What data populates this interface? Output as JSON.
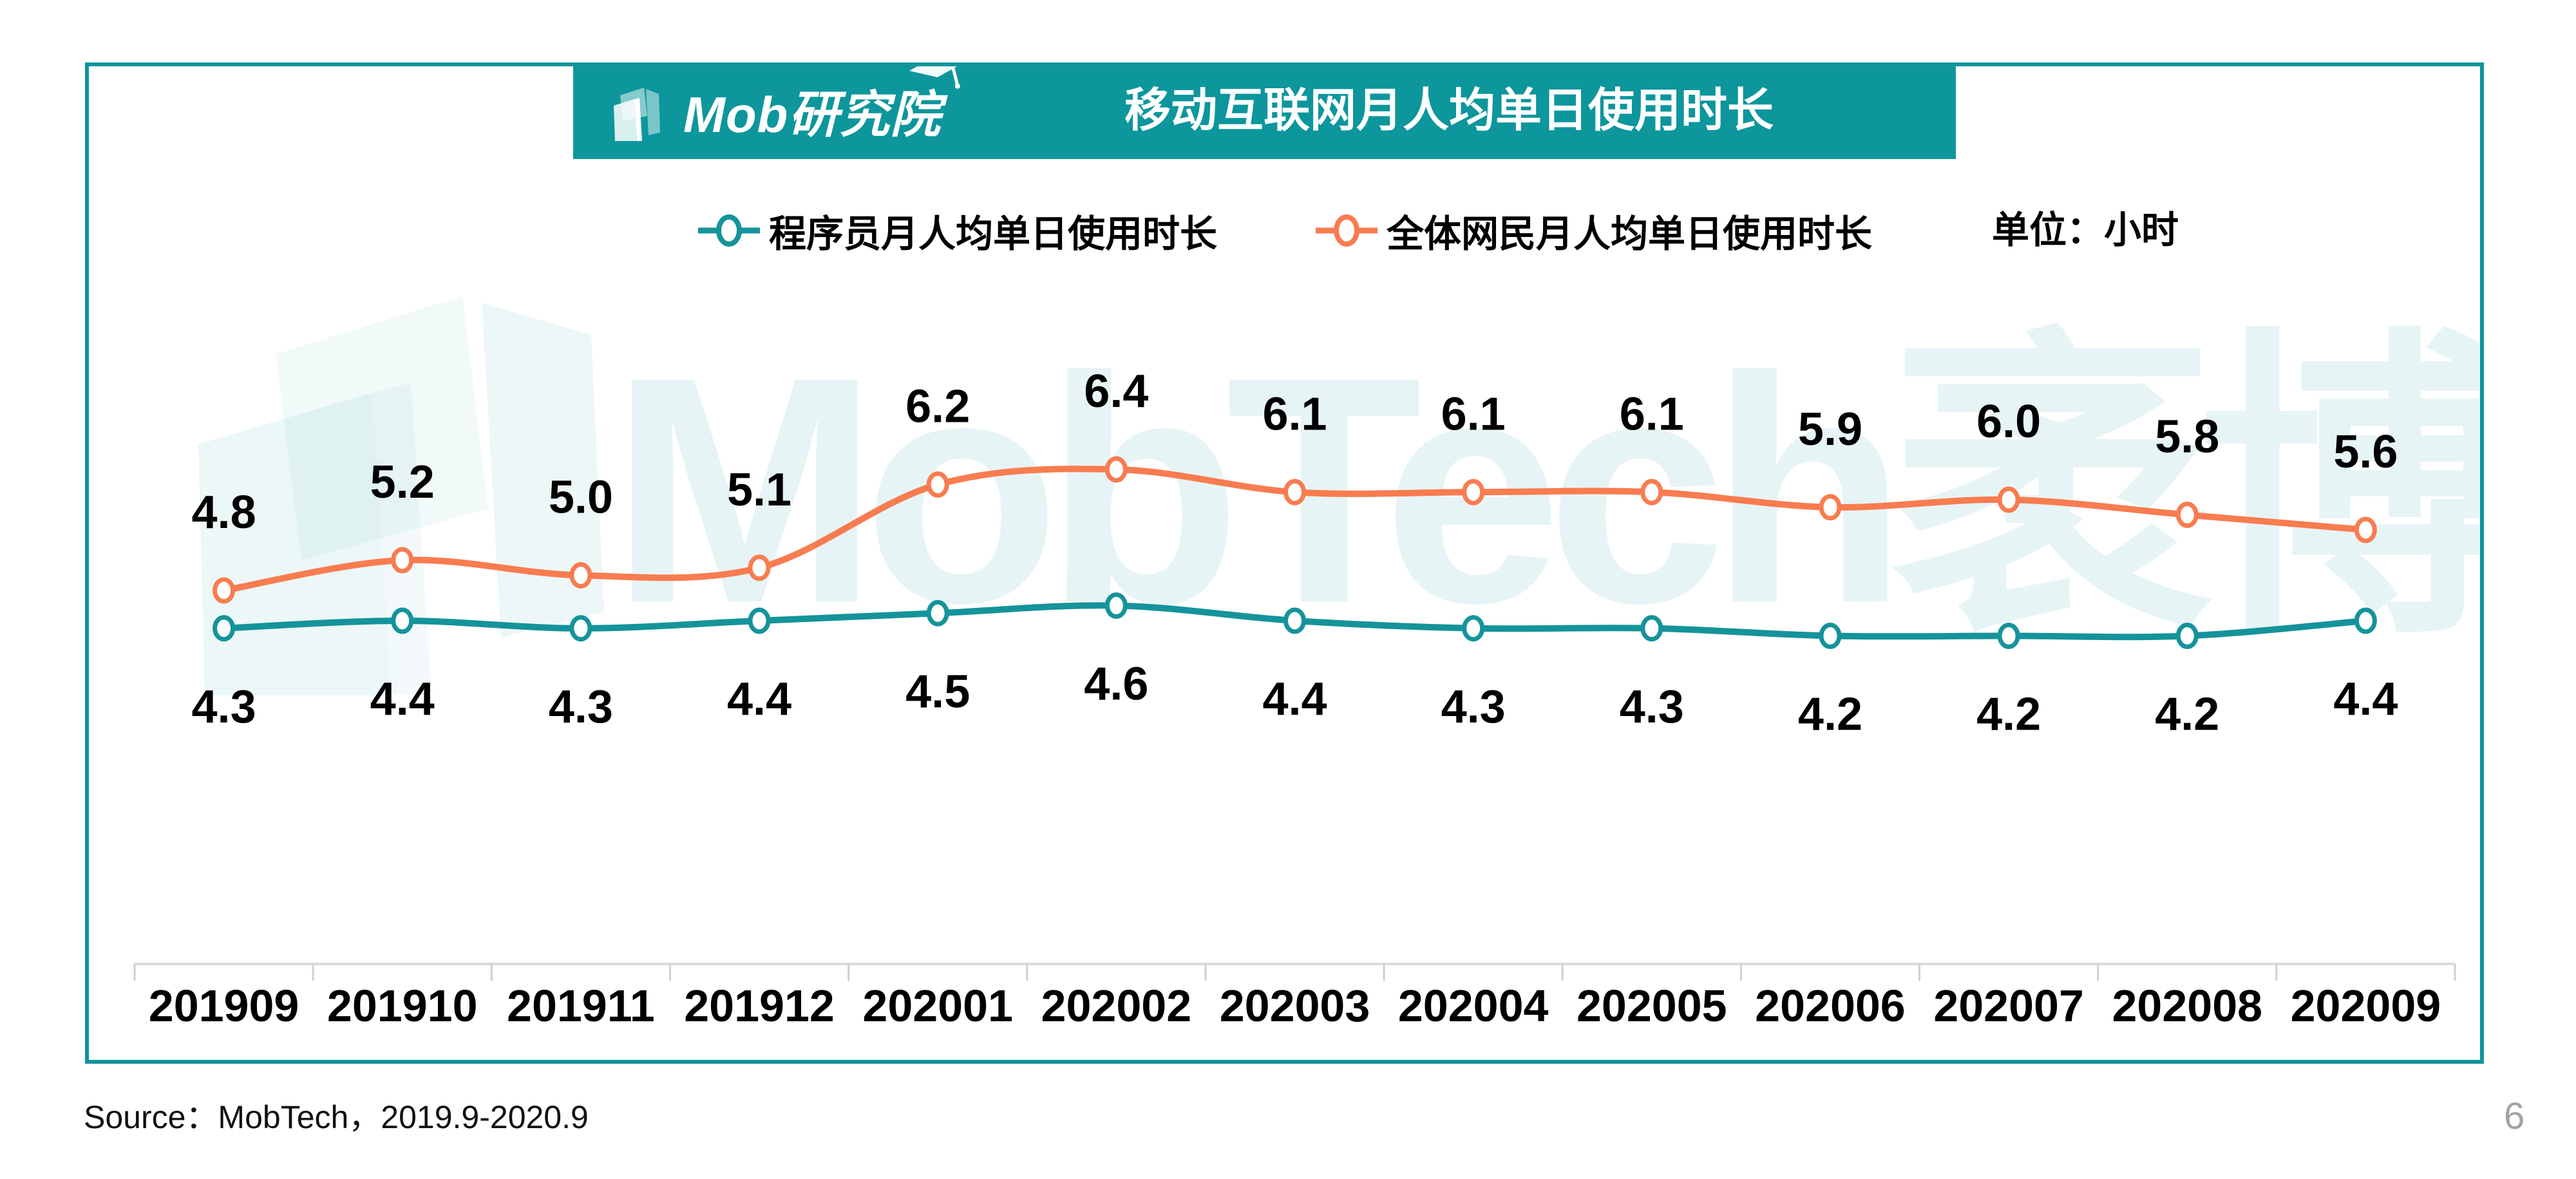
{
  "header": {
    "logo_text": "Mob研究院",
    "title": "移动互联网月人均单日使用时长"
  },
  "legend": {
    "series1_label": "程序员月人均单日使用时长",
    "series2_label": "全体网民月人均单日使用时长",
    "unit_label": "单位：小时"
  },
  "watermark_text": "MobTech袤博",
  "footer": {
    "source": "Source：MobTech，2019.9-2020.9",
    "page_number": "6"
  },
  "colors": {
    "accent_teal": "#0D969C",
    "line_teal": "#15939B",
    "line_orange": "#F87C50",
    "axis_gray": "#DBDBDB",
    "tick_gray": "#CFCFCF",
    "watermark_teal": "rgba(18,147,154,0.10)"
  },
  "chart_data": {
    "type": "line",
    "title": "移动互联网月人均单日使用时长",
    "unit": "小时",
    "xlabel": "",
    "ylabel": "",
    "grid": false,
    "legend_position": "top",
    "ylim": [
      0,
      7
    ],
    "categories": [
      "201909",
      "201910",
      "201911",
      "201912",
      "202001",
      "202002",
      "202003",
      "202004",
      "202005",
      "202006",
      "202007",
      "202008",
      "202009"
    ],
    "series": [
      {
        "name": "程序员月人均单日使用时长",
        "color_key": "line_teal",
        "label_position": "below",
        "values": [
          4.3,
          4.4,
          4.3,
          4.4,
          4.5,
          4.6,
          4.4,
          4.3,
          4.3,
          4.2,
          4.2,
          4.2,
          4.4
        ]
      },
      {
        "name": "全体网民月人均单日使用时长",
        "color_key": "line_orange",
        "label_position": "above",
        "values": [
          4.8,
          5.2,
          5.0,
          5.1,
          6.2,
          6.4,
          6.1,
          6.1,
          6.1,
          5.9,
          6.0,
          5.8,
          5.6
        ]
      }
    ]
  }
}
